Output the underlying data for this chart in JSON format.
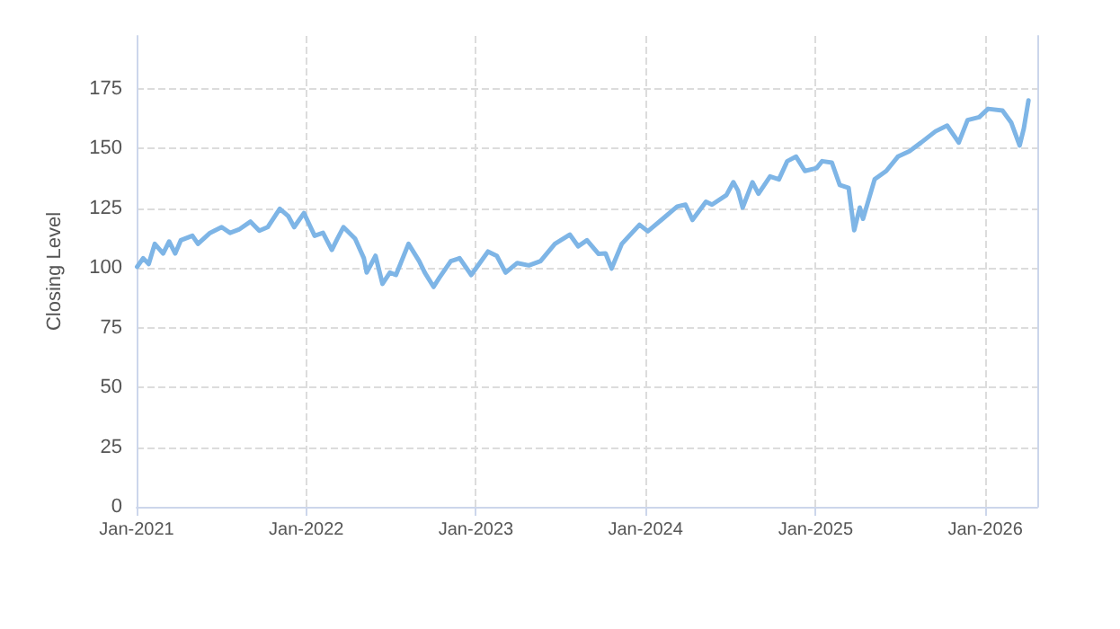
{
  "chart_data": {
    "type": "line",
    "ylabel": "Closing Level",
    "xlim": [
      "2021-01-01",
      "2026-04-23"
    ],
    "ylim": [
      0,
      197
    ],
    "xticks": [
      {
        "value": "2021-01-01",
        "label": "Jan-2021"
      },
      {
        "value": "2022-01-01",
        "label": "Jan-2022"
      },
      {
        "value": "2023-01-01",
        "label": "Jan-2023"
      },
      {
        "value": "2024-01-01",
        "label": "Jan-2024"
      },
      {
        "value": "2025-01-01",
        "label": "Jan-2025"
      },
      {
        "value": "2026-01-01",
        "label": "Jan-2026"
      }
    ],
    "yticks": [
      0,
      25,
      50,
      75,
      100,
      125,
      150,
      175
    ],
    "grid": true,
    "marker": "none",
    "line_style": "solid",
    "series": [
      {
        "color": "#7eb5e6",
        "x": [
          "2021-01-02",
          "2021-01-15",
          "2021-01-27",
          "2021-02-09",
          "2021-02-27",
          "2021-03-12",
          "2021-03-25",
          "2021-04-06",
          "2021-05-01",
          "2021-05-13",
          "2021-06-08",
          "2021-07-03",
          "2021-07-21",
          "2021-08-09",
          "2021-09-03",
          "2021-09-22",
          "2021-10-10",
          "2021-11-05",
          "2021-11-23",
          "2021-12-06",
          "2021-12-27",
          "2022-01-19",
          "2022-02-06",
          "2022-02-25",
          "2022-03-09",
          "2022-03-22",
          "2022-04-16",
          "2022-05-05",
          "2022-05-11",
          "2022-05-30",
          "2022-06-14",
          "2022-06-30",
          "2022-07-13",
          "2022-08-09",
          "2022-09-01",
          "2022-09-13",
          "2022-10-02",
          "2022-10-14",
          "2022-11-08",
          "2022-11-27",
          "2022-12-22",
          "2023-01-27",
          "2023-02-15",
          "2023-03-06",
          "2023-03-31",
          "2023-04-25",
          "2023-05-20",
          "2023-06-20",
          "2023-07-22",
          "2023-08-09",
          "2023-08-28",
          "2023-09-22",
          "2023-10-07",
          "2023-10-20",
          "2023-11-11",
          "2023-12-19",
          "2024-01-06",
          "2024-02-07",
          "2024-03-09",
          "2024-03-27",
          "2024-04-11",
          "2024-05-10",
          "2024-05-23",
          "2024-06-23",
          "2024-07-08",
          "2024-07-18",
          "2024-07-28",
          "2024-08-18",
          "2024-08-31",
          "2024-09-25",
          "2024-10-14",
          "2024-11-01",
          "2024-11-20",
          "2024-12-09",
          "2025-01-03",
          "2025-01-15",
          "2025-02-05",
          "2025-02-22",
          "2025-03-13",
          "2025-03-25",
          "2025-04-06",
          "2025-04-13",
          "2025-05-08",
          "2025-06-02",
          "2025-06-27",
          "2025-07-22",
          "2025-08-16",
          "2025-09-16",
          "2025-10-11",
          "2025-11-05",
          "2025-11-24",
          "2025-12-19",
          "2026-01-07",
          "2026-02-07",
          "2026-02-26",
          "2026-03-16",
          "2026-03-25",
          "2026-04-04"
        ],
        "values": [
          100.4,
          104,
          101.6,
          110,
          106,
          111,
          106,
          111.5,
          113.4,
          110,
          114.6,
          117,
          114.6,
          116,
          119.3,
          115.5,
          117,
          124.7,
          121.7,
          117,
          122.9,
          113.4,
          114.6,
          107.5,
          112.2,
          117,
          112.2,
          104,
          98,
          105,
          93.3,
          98,
          97,
          110,
          102.8,
          98,
          92,
          95.7,
          102.8,
          104,
          97,
          106.8,
          105,
          98,
          102,
          101,
          102.8,
          110,
          113.9,
          109,
          111.5,
          105.8,
          106,
          99.7,
          110,
          118,
          115.3,
          120.5,
          125.6,
          126.4,
          120,
          127.6,
          126.4,
          130.4,
          135.8,
          132.3,
          125.2,
          135.8,
          131,
          138.2,
          137,
          144.6,
          146.5,
          140.5,
          141.7,
          144.6,
          144,
          134.6,
          133.4,
          115.7,
          125.2,
          120.5,
          137,
          140.5,
          146.5,
          148.8,
          152.4,
          157.1,
          159.5,
          152.4,
          161.8,
          163,
          166.5,
          165.8,
          160.7,
          151.2,
          158.3,
          170
        ]
      }
    ]
  }
}
